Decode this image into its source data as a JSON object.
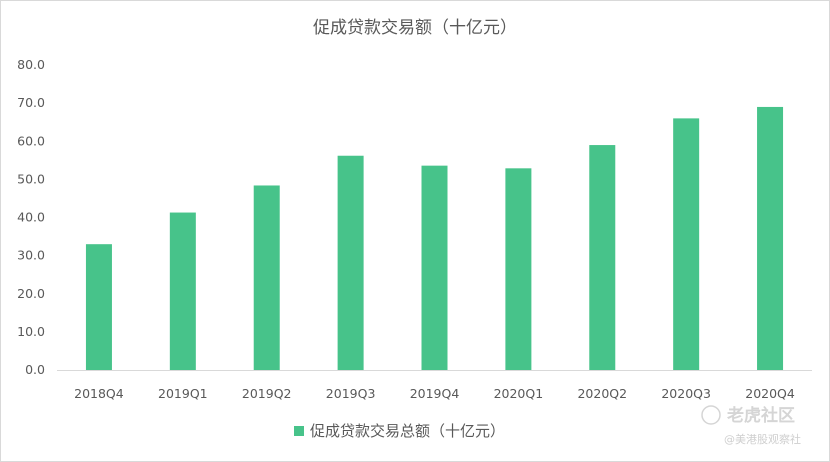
{
  "chart_data": {
    "type": "bar",
    "title": "促成贷款交易额（十亿元）",
    "categories": [
      "2018Q4",
      "2019Q1",
      "2019Q2",
      "2019Q3",
      "2019Q4",
      "2020Q1",
      "2020Q2",
      "2020Q3",
      "2020Q4"
    ],
    "series": [
      {
        "name": "促成贷款交易总额（十亿元）",
        "values": [
          33.0,
          41.3,
          48.4,
          56.2,
          53.6,
          52.9,
          59.0,
          66.0,
          69.0
        ]
      }
    ],
    "ylim": [
      0,
      80
    ],
    "yticks": [
      "0.0",
      "10.0",
      "20.0",
      "30.0",
      "40.0",
      "50.0",
      "60.0",
      "70.0",
      "80.0"
    ],
    "grid": false,
    "legend": "bottom-center",
    "bar_color": "#47c38a",
    "axis_color": "#d9d9d9"
  },
  "watermark": {
    "brand": "老虎社区",
    "handle": "@美港股观察社"
  }
}
